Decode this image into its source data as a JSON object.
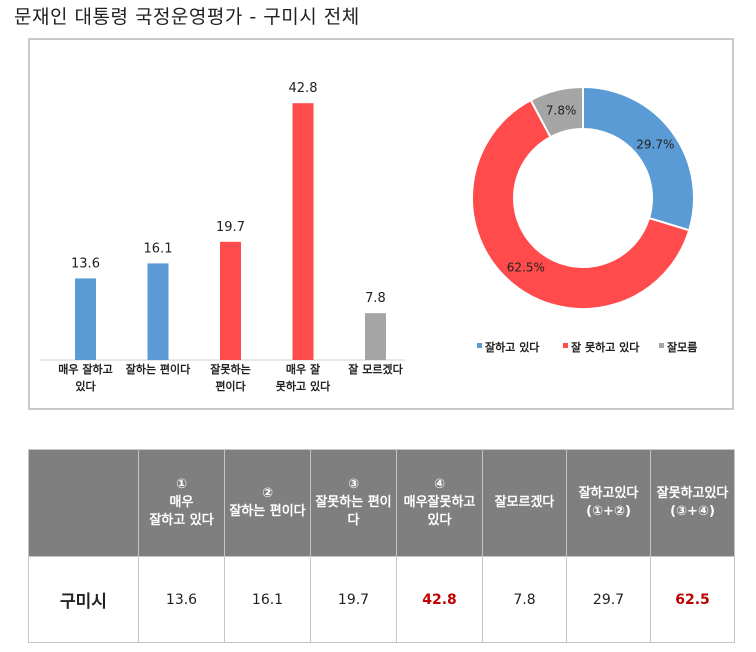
{
  "title": "문재인 대통령 국정운영평가 - 구미시 전체",
  "chart_data": [
    {
      "type": "bar",
      "categories": [
        "매우 잘하고\n있다",
        "잘하는 편이다",
        "잘못하는\n편이다",
        "매우 잘\n못하고 있다",
        "잘 모르겠다"
      ],
      "values": [
        13.6,
        16.1,
        19.7,
        42.8,
        7.8
      ],
      "value_labels": [
        "13.6",
        "16.1",
        "19.7",
        "42.8",
        "7.8"
      ],
      "colors": [
        "#5b9bd5",
        "#5b9bd5",
        "#ff4b4b",
        "#ff4b4b",
        "#a5a5a5"
      ],
      "ylim": [
        0,
        45
      ]
    },
    {
      "type": "pie",
      "donut": true,
      "labels": [
        "잘하고 있다",
        "잘 못하고 있다",
        "잘모름"
      ],
      "values": [
        29.7,
        62.5,
        7.8
      ],
      "value_labels": [
        "29.7%",
        "62.5%",
        "7.8%"
      ],
      "colors": [
        "#5b9bd5",
        "#ff4b4b",
        "#a5a5a5"
      ],
      "legend_position": "bottom"
    }
  ],
  "table": {
    "headers": [
      "",
      "①\n매우\n잘하고 있다",
      "②\n잘하는 편이다",
      "③\n잘못하는 편이다",
      "④\n매우잘못하고\n있다",
      "잘모르겠다",
      "잘하고있다\n(①+②)",
      "잘못하고있다\n(③+④)"
    ],
    "row": {
      "region": "구미시",
      "cells": [
        "13.6",
        "16.1",
        "19.7",
        "42.8",
        "7.8",
        "29.7",
        "62.5"
      ]
    },
    "highlight_color": "#c00000"
  }
}
